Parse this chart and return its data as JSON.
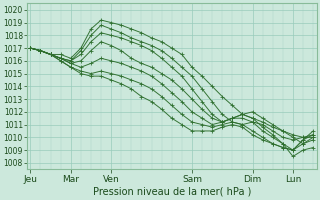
{
  "xlabel": "Pression niveau de la mer( hPa )",
  "bg_color": "#cce8dc",
  "grid_color": "#99ccbb",
  "line_color": "#2d6e2d",
  "ylim": [
    1007.5,
    1020.5
  ],
  "yticks": [
    1008,
    1009,
    1010,
    1011,
    1012,
    1013,
    1014,
    1015,
    1016,
    1017,
    1018,
    1019,
    1020
  ],
  "day_labels": [
    "Jeu",
    "Mar",
    "Ven",
    "Sam",
    "Dim",
    "Lun"
  ],
  "day_ticks": [
    0,
    24,
    48,
    96,
    132,
    156
  ],
  "xlim": [
    -2,
    170
  ],
  "series": [
    {
      "x": [
        0,
        6,
        12,
        18,
        24,
        30,
        36,
        42,
        48,
        54,
        60,
        66,
        72,
        78,
        84,
        90,
        96,
        102,
        108,
        114,
        120,
        126,
        132,
        138,
        144,
        150,
        156,
        162,
        168
      ],
      "y": [
        1017.0,
        1016.8,
        1016.5,
        1016.5,
        1016.2,
        1017.0,
        1018.5,
        1019.2,
        1019.0,
        1018.8,
        1018.5,
        1018.2,
        1017.8,
        1017.5,
        1017.0,
        1016.5,
        1015.5,
        1014.8,
        1014.0,
        1013.2,
        1012.5,
        1011.8,
        1011.5,
        1011.2,
        1010.8,
        1010.5,
        1010.2,
        1010.0,
        1010.0
      ]
    },
    {
      "x": [
        0,
        6,
        12,
        18,
        24,
        30,
        36,
        42,
        48,
        54,
        60,
        66,
        72,
        78,
        84,
        90,
        96,
        102,
        108,
        114,
        120,
        126,
        132,
        138,
        144,
        150,
        156,
        162,
        168
      ],
      "y": [
        1017.0,
        1016.8,
        1016.5,
        1016.2,
        1016.0,
        1016.8,
        1018.0,
        1018.8,
        1018.5,
        1018.2,
        1017.8,
        1017.5,
        1017.2,
        1016.8,
        1016.2,
        1015.5,
        1014.8,
        1013.8,
        1012.8,
        1011.8,
        1011.2,
        1011.0,
        1011.2,
        1011.0,
        1010.5,
        1010.0,
        1009.8,
        1010.0,
        1010.2
      ]
    },
    {
      "x": [
        0,
        6,
        12,
        18,
        24,
        30,
        36,
        42,
        48,
        54,
        60,
        66,
        72,
        78,
        84,
        90,
        96,
        102,
        108,
        114,
        120,
        126,
        132,
        138,
        144,
        150,
        156,
        162,
        168
      ],
      "y": [
        1017.0,
        1016.8,
        1016.5,
        1016.2,
        1016.0,
        1016.5,
        1017.5,
        1018.2,
        1018.0,
        1017.8,
        1017.5,
        1017.2,
        1016.8,
        1016.2,
        1015.5,
        1014.8,
        1013.8,
        1012.8,
        1011.8,
        1011.2,
        1011.5,
        1011.8,
        1012.0,
        1011.5,
        1011.0,
        1010.5,
        1010.0,
        1009.5,
        1009.8
      ]
    },
    {
      "x": [
        0,
        6,
        12,
        18,
        24,
        30,
        36,
        42,
        48,
        54,
        60,
        66,
        72,
        78,
        84,
        90,
        96,
        102,
        108,
        114,
        120,
        126,
        132,
        138,
        144,
        150,
        156,
        162,
        168
      ],
      "y": [
        1017.0,
        1016.8,
        1016.5,
        1016.2,
        1015.8,
        1016.0,
        1016.8,
        1017.5,
        1017.2,
        1016.8,
        1016.2,
        1015.8,
        1015.5,
        1015.0,
        1014.5,
        1013.8,
        1013.0,
        1012.2,
        1011.5,
        1011.2,
        1011.5,
        1011.8,
        1011.5,
        1010.8,
        1010.2,
        1009.5,
        1008.5,
        1009.0,
        1009.2
      ]
    },
    {
      "x": [
        0,
        6,
        12,
        18,
        24,
        30,
        36,
        42,
        48,
        54,
        60,
        66,
        72,
        78,
        84,
        90,
        96,
        102,
        108,
        114,
        120,
        126,
        132,
        138,
        144,
        150,
        156,
        162,
        168
      ],
      "y": [
        1017.0,
        1016.8,
        1016.5,
        1016.2,
        1015.8,
        1015.5,
        1015.8,
        1016.2,
        1016.0,
        1015.8,
        1015.5,
        1015.2,
        1014.8,
        1014.2,
        1013.5,
        1012.8,
        1012.0,
        1011.5,
        1011.0,
        1011.2,
        1011.5,
        1011.5,
        1011.2,
        1010.5,
        1010.0,
        1009.5,
        1009.0,
        1009.5,
        1010.0
      ]
    },
    {
      "x": [
        0,
        6,
        12,
        18,
        24,
        30,
        36,
        42,
        48,
        54,
        60,
        66,
        72,
        78,
        84,
        90,
        96,
        102,
        108,
        114,
        120,
        126,
        132,
        138,
        144,
        150,
        156,
        162,
        168
      ],
      "y": [
        1017.0,
        1016.8,
        1016.5,
        1016.0,
        1015.5,
        1015.2,
        1015.0,
        1015.2,
        1015.0,
        1014.8,
        1014.5,
        1014.2,
        1013.8,
        1013.2,
        1012.5,
        1011.8,
        1011.2,
        1011.0,
        1010.8,
        1011.0,
        1011.2,
        1011.0,
        1010.5,
        1010.0,
        1009.5,
        1009.2,
        1009.0,
        1009.8,
        1010.2
      ]
    },
    {
      "x": [
        0,
        6,
        12,
        18,
        24,
        30,
        36,
        42,
        48,
        54,
        60,
        66,
        72,
        78,
        84,
        90,
        96,
        102,
        108,
        114,
        120,
        126,
        132,
        138,
        144,
        150,
        156,
        162,
        168
      ],
      "y": [
        1017.0,
        1016.8,
        1016.5,
        1016.0,
        1015.5,
        1015.0,
        1014.8,
        1014.8,
        1014.5,
        1014.2,
        1013.8,
        1013.2,
        1012.8,
        1012.2,
        1011.5,
        1011.0,
        1010.5,
        1010.5,
        1010.5,
        1010.8,
        1011.0,
        1010.8,
        1010.2,
        1009.8,
        1009.5,
        1009.2,
        1009.0,
        1009.8,
        1010.5
      ]
    }
  ]
}
